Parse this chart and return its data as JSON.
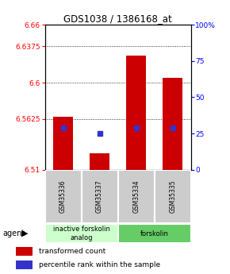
{
  "title": "GDS1038 / 1386168_at",
  "samples": [
    "GSM35336",
    "GSM35337",
    "GSM35334",
    "GSM35335"
  ],
  "bar_values": [
    6.565,
    6.527,
    6.628,
    6.605
  ],
  "percentile_values": [
    6.553,
    6.548,
    6.553,
    6.553
  ],
  "ymin": 6.51,
  "ymax": 6.66,
  "yticks_left": [
    6.51,
    6.5625,
    6.6,
    6.6375,
    6.66
  ],
  "yticks_right_labels": [
    "0",
    "25",
    "50",
    "75",
    "100%"
  ],
  "yticks_right_vals": [
    0,
    25,
    50,
    75,
    100
  ],
  "bar_color": "#cc0000",
  "percentile_color": "#3333cc",
  "bar_width": 0.55,
  "groups": [
    {
      "label": "inactive forskolin\nanalog",
      "span": [
        0,
        1
      ],
      "color": "#ccffcc"
    },
    {
      "label": "forskolin",
      "span": [
        2,
        3
      ],
      "color": "#66cc66"
    }
  ],
  "legend_items": [
    {
      "color": "#cc0000",
      "label": "transformed count"
    },
    {
      "color": "#3333cc",
      "label": "percentile rank within the sample"
    }
  ],
  "sample_box_color": "#cccccc",
  "grid_yticks": [
    6.5625,
    6.6,
    6.6375
  ]
}
